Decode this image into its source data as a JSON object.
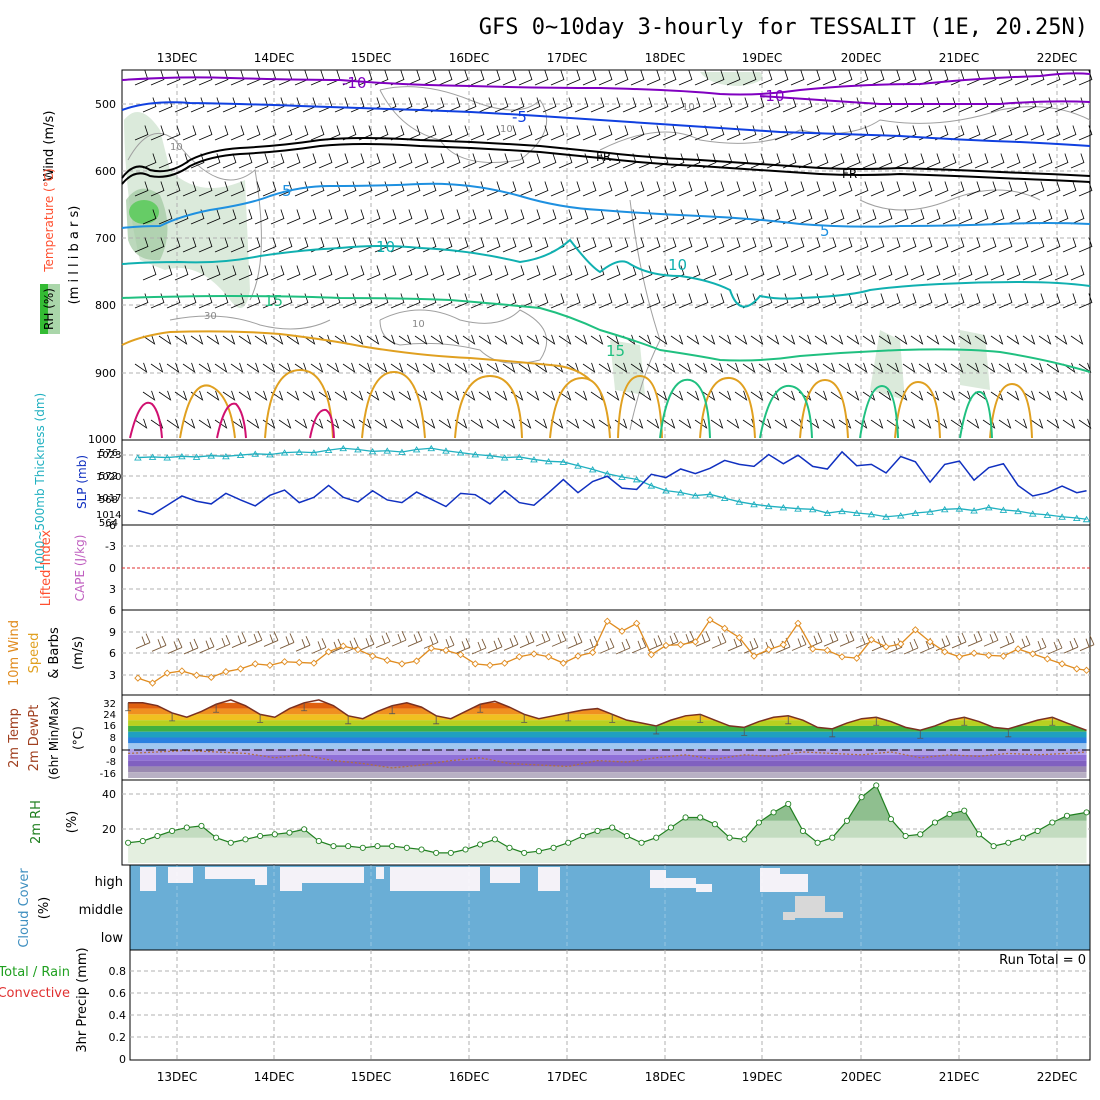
{
  "title": "GFS 0~10day 3-hourly for TESSALIT (1E, 20.25N)",
  "x_axis": {
    "top_labels": [
      "13DEC",
      "14DEC",
      "15DEC",
      "16DEC",
      "17DEC",
      "18DEC",
      "19DEC",
      "20DEC",
      "21DEC",
      "22DEC"
    ],
    "bottom_labels": [
      "13DEC",
      "14DEC",
      "15DEC",
      "16DEC",
      "17DEC",
      "18DEC",
      "19DEC",
      "20DEC",
      "21DEC",
      "22DEC"
    ]
  },
  "colors": {
    "purple": "#8000c0",
    "blue": "#1040e0",
    "lightblue": "#1e90e0",
    "teal": "#10b0b0",
    "green": "#20c080",
    "orange": "#e0a020",
    "magenta": "#d01070",
    "slp": "#1030c0",
    "thickness": "#20b0c0",
    "wind10": "#e08c20",
    "rh2m": "#208020",
    "cloud": "#6aaed6"
  },
  "panels": {
    "upper": {
      "ylabel_wind": "Wind (m/s)",
      "ylabel_temp": "Temperature (°C)",
      "ylabel_rh": "RH (%)",
      "ylabel_mb": "(m i l l i b a r s)",
      "yticks": [
        "500",
        "600",
        "700",
        "800",
        "900",
        "1000"
      ],
      "contour_labels": {
        "m10a": "-10",
        "m10b": "-10",
        "m5": "-5",
        "fr1": "FR",
        "fr2": "FR",
        "p5a": "5",
        "p5b": "5",
        "p10a": "10",
        "p10b": "10",
        "p15a": "15",
        "p15b": "15",
        "rh10a": "10",
        "rh10b": "10",
        "rh10c": "10",
        "rh10d": "10",
        "rh30": "30"
      }
    },
    "slp": {
      "ylabel_thick": "1000~500mb Thickness (dm)",
      "ylabel_slp": "SLP (mb)",
      "left_ticks": [
        "576",
        "572",
        "568",
        "564"
      ],
      "right_ticks": [
        "1023",
        "1020",
        "1017",
        "1014"
      ]
    },
    "cape": {
      "ylabel_li": "Lifted Index",
      "ylabel_cape": "CAPE (J/kg)",
      "yticks": [
        "-6",
        "-3",
        "0",
        "3",
        "6"
      ]
    },
    "wind10": {
      "ylabel_a": "10m Wind",
      "ylabel_b": "Speed",
      "ylabel_c": "& Barbs",
      "ylabel_d": "(m/s)",
      "yticks": [
        "9",
        "6",
        "3"
      ]
    },
    "temp": {
      "ylabel_a": "2m Temp",
      "ylabel_b": "2m DewPt",
      "ylabel_c": "(6hr Min/Max)",
      "ylabel_d": "(°C)",
      "yticks": [
        "32",
        "24",
        "16",
        "8",
        "0",
        "-8",
        "-16"
      ]
    },
    "rh": {
      "ylabel_a": "2m RH",
      "ylabel_b": "(%)",
      "yticks": [
        "40",
        "20"
      ]
    },
    "cloud": {
      "ylabel_a": "Cloud Cover",
      "ylabel_b": "(%)",
      "levels": [
        "high",
        "middle",
        "low"
      ]
    },
    "precip": {
      "ylabel_a": "3hr Precip (mm)",
      "ylabel_total": "Total / Rain",
      "ylabel_conv": "Convective",
      "run_total": "Run Total = 0",
      "yticks": [
        "0.8",
        "0.6",
        "0.4",
        "0.2",
        "0"
      ]
    }
  },
  "chart_data": [
    {
      "type": "line",
      "name": "1000~500mb thickness and SLP",
      "x_days": [
        12.6,
        12.75,
        12.9,
        13.05,
        13.2,
        13.35,
        13.5,
        13.65,
        13.8,
        13.95,
        14.1,
        14.25,
        14.4,
        14.55,
        14.7,
        14.85,
        15.0,
        15.15,
        15.3,
        15.45,
        15.6,
        15.75,
        15.9,
        16.05,
        16.2,
        16.35,
        16.5,
        16.65,
        16.8,
        16.95,
        17.1,
        17.25,
        17.4,
        17.55,
        17.7,
        17.85,
        18.0,
        18.15,
        18.3,
        18.45,
        18.6,
        18.75,
        18.9,
        19.05,
        19.2,
        19.35,
        19.5,
        19.65,
        19.8,
        19.95,
        20.1,
        20.25,
        20.4,
        20.55,
        20.7,
        20.85,
        21.0,
        21.15,
        21.3,
        21.45,
        21.6,
        21.75,
        21.9,
        22.05,
        22.2,
        22.3
      ],
      "series": [
        {
          "name": "Thickness",
          "values": [
            574.5,
            574.6,
            574.5,
            574.7,
            574.6,
            574.8,
            574.7,
            574.9,
            575.1,
            575.0,
            575.3,
            575.4,
            575.3,
            575.7,
            576.0,
            575.8,
            575.5,
            575.6,
            575.4,
            575.8,
            576.0,
            575.6,
            575.3,
            575.0,
            574.8,
            574.5,
            574.6,
            574.2,
            573.9,
            573.8,
            573.2,
            572.6,
            571.9,
            571.4,
            571.0,
            570.0,
            569.2,
            568.9,
            568.4,
            568.6,
            568.0,
            567.4,
            567.0,
            566.7,
            566.5,
            566.3,
            566.2,
            565.6,
            565.9,
            565.6,
            565.4,
            565.0,
            565.2,
            565.6,
            565.8,
            566.2,
            566.3,
            566.0,
            566.5,
            566.1,
            565.9,
            565.5,
            565.3,
            565.0,
            564.8,
            564.6
          ]
        },
        {
          "name": "SLP",
          "values": [
            1014.2,
            1013.6,
            1015.0,
            1016.4,
            1015.6,
            1015.2,
            1016.8,
            1015.8,
            1014.9,
            1016.5,
            1017.3,
            1015.4,
            1016.2,
            1018.0,
            1016.2,
            1015.5,
            1017.2,
            1015.8,
            1015.4,
            1017.0,
            1015.9,
            1014.8,
            1016.8,
            1016.6,
            1015.2,
            1017.2,
            1015.4,
            1015.0,
            1016.9,
            1018.9,
            1016.9,
            1018.6,
            1019.4,
            1017.6,
            1017.4,
            1019.7,
            1019.2,
            1020.5,
            1019.8,
            1020.6,
            1021.8,
            1021.2,
            1020.9,
            1022.7,
            1021.3,
            1022.6,
            1020.9,
            1020.5,
            1023.1,
            1021.0,
            1021.2,
            1019.9,
            1022.4,
            1021.6,
            1018.5,
            1021.2,
            1021.7,
            1018.8,
            1020.7,
            1021.3,
            1018.0,
            1016.4,
            1016.9,
            1017.9,
            1016.9,
            1017.2
          ]
        }
      ],
      "ylim_thickness": [
        564,
        577
      ],
      "ylim_slp": [
        1012.3,
        1024.6
      ],
      "xlabel": "",
      "ylabel": "Thickness (dm) / SLP (mb)"
    },
    {
      "type": "line",
      "name": "10m Wind Speed",
      "x_days": [
        12.6,
        12.75,
        12.9,
        13.05,
        13.2,
        13.35,
        13.5,
        13.65,
        13.8,
        13.95,
        14.1,
        14.25,
        14.4,
        14.55,
        14.7,
        14.85,
        15.0,
        15.15,
        15.3,
        15.45,
        15.6,
        15.75,
        15.9,
        16.05,
        16.2,
        16.35,
        16.5,
        16.65,
        16.8,
        16.95,
        17.1,
        17.25,
        17.4,
        17.55,
        17.7,
        17.85,
        18.0,
        18.15,
        18.3,
        18.45,
        18.6,
        18.75,
        18.9,
        19.05,
        19.2,
        19.35,
        19.5,
        19.65,
        19.8,
        19.95,
        20.1,
        20.25,
        20.4,
        20.55,
        20.7,
        20.85,
        21.0,
        21.15,
        21.3,
        21.45,
        21.6,
        21.75,
        21.9,
        22.05,
        22.2,
        22.3
      ],
      "values": [
        2.1,
        1.4,
        2.8,
        3.1,
        2.5,
        2.2,
        3.0,
        3.4,
        4.1,
        3.9,
        4.4,
        4.3,
        4.2,
        5.8,
        6.6,
        6.1,
        5.2,
        4.6,
        4.1,
        4.5,
        6.3,
        6.0,
        5.4,
        4.1,
        3.9,
        4.2,
        5.1,
        5.5,
        5.1,
        4.2,
        5.2,
        5.7,
        10.1,
        8.7,
        9.8,
        5.4,
        6.7,
        6.8,
        7.2,
        10.3,
        9.1,
        7.8,
        5.2,
        6.1,
        6.8,
        9.8,
        6.2,
        6.0,
        5.1,
        4.9,
        7.5,
        6.5,
        6.9,
        8.9,
        7.2,
        5.8,
        5.1,
        5.6,
        5.3,
        5.2,
        6.2,
        5.5,
        4.8,
        4.1,
        3.4,
        3.2
      ],
      "ylim": [
        0,
        11.4
      ],
      "ylabel": "10m Wind Speed (m/s)"
    },
    {
      "type": "area",
      "name": "2m Temp",
      "x_days": [
        12.5,
        12.65,
        12.8,
        12.95,
        13.1,
        13.25,
        13.4,
        13.55,
        13.7,
        13.85,
        14.0,
        14.15,
        14.3,
        14.45,
        14.6,
        14.75,
        14.9,
        15.05,
        15.2,
        15.35,
        15.5,
        15.65,
        15.8,
        15.95,
        16.1,
        16.25,
        16.4,
        16.55,
        16.7,
        16.85,
        17.0,
        17.15,
        17.3,
        17.45,
        17.6,
        17.75,
        17.9,
        18.05,
        18.2,
        18.35,
        18.5,
        18.65,
        18.8,
        18.95,
        19.1,
        19.25,
        19.4,
        19.55,
        19.7,
        19.85,
        20.0,
        20.15,
        20.3,
        20.45,
        20.6,
        20.75,
        20.9,
        21.05,
        21.2,
        21.35,
        21.5,
        21.65,
        21.8,
        21.95,
        22.1,
        22.3
      ],
      "values": [
        32,
        32,
        30,
        25,
        22,
        26,
        31,
        34,
        30,
        24,
        22,
        28,
        32,
        34,
        30,
        23,
        21,
        26,
        30,
        32,
        29,
        23,
        21,
        26,
        31,
        33,
        29,
        24,
        21,
        23,
        25,
        27,
        28,
        24,
        20,
        18,
        16,
        20,
        23,
        24,
        20,
        16,
        15,
        19,
        22,
        23,
        20,
        15,
        14,
        18,
        21,
        22,
        19,
        15,
        13,
        16,
        20,
        22,
        19,
        15,
        14,
        17,
        20,
        22,
        18,
        13
      ],
      "ylim": [
        -20,
        36
      ],
      "ylabel": "2m Temp (°C)"
    },
    {
      "type": "line",
      "name": "2m DewPt",
      "x_days": [
        12.5,
        12.8,
        13.1,
        13.4,
        13.7,
        14.0,
        14.3,
        14.6,
        14.9,
        15.2,
        15.5,
        15.8,
        16.1,
        16.4,
        16.7,
        17.0,
        17.3,
        17.6,
        17.9,
        18.2,
        18.5,
        18.8,
        19.1,
        19.4,
        19.7,
        20.0,
        20.3,
        20.6,
        20.9,
        21.2,
        21.5,
        21.8,
        22.1,
        22.3
      ],
      "values": [
        -3,
        -2,
        -1,
        -2,
        -3,
        -6,
        -4,
        -8,
        -10,
        -13,
        -11,
        -8,
        -6,
        -10,
        -11,
        -12,
        -8,
        -9,
        -6,
        -4,
        -7,
        -4,
        -5,
        -2,
        -3,
        -4,
        -2,
        -6,
        -4,
        -5,
        -3,
        -4,
        -3,
        -2
      ],
      "ylim": [
        -20,
        36
      ],
      "ylabel": "2m DewPt (°C)"
    },
    {
      "type": "area",
      "name": "2m RH",
      "x_days": [
        12.5,
        12.65,
        12.8,
        12.95,
        13.1,
        13.25,
        13.4,
        13.55,
        13.7,
        13.85,
        14.0,
        14.15,
        14.3,
        14.45,
        14.6,
        14.75,
        14.9,
        15.05,
        15.2,
        15.35,
        15.5,
        15.65,
        15.8,
        15.95,
        16.1,
        16.25,
        16.4,
        16.55,
        16.7,
        16.85,
        17.0,
        17.15,
        17.3,
        17.45,
        17.6,
        17.75,
        17.9,
        18.05,
        18.2,
        18.35,
        18.5,
        18.65,
        18.8,
        18.95,
        19.1,
        19.25,
        19.4,
        19.55,
        19.7,
        19.85,
        20.0,
        20.15,
        20.3,
        20.45,
        20.6,
        20.75,
        20.9,
        21.05,
        21.2,
        21.35,
        21.5,
        21.65,
        21.8,
        21.95,
        22.1,
        22.3
      ],
      "values": [
        12,
        13,
        16,
        19,
        21,
        22,
        15,
        12,
        14,
        16,
        17,
        18,
        20,
        13,
        10,
        10,
        9,
        10,
        10,
        9,
        8,
        6,
        6,
        8,
        11,
        14,
        9,
        6,
        7,
        9,
        12,
        16,
        19,
        21,
        16,
        12,
        15,
        21,
        27,
        27,
        23,
        15,
        14,
        24,
        30,
        35,
        19,
        12,
        15,
        25,
        39,
        46,
        26,
        16,
        17,
        24,
        29,
        31,
        17,
        10,
        12,
        15,
        19,
        24,
        28,
        30
      ],
      "ylim": [
        0,
        48
      ],
      "ylabel": "2m RH (%)"
    },
    {
      "type": "bar",
      "name": "3hr Precip",
      "categories": [
        "13DEC",
        "14DEC",
        "15DEC",
        "16DEC",
        "17DEC",
        "18DEC",
        "19DEC",
        "20DEC",
        "21DEC",
        "22DEC"
      ],
      "values": [
        0,
        0,
        0,
        0,
        0,
        0,
        0,
        0,
        0,
        0
      ],
      "ylim": [
        0,
        1
      ],
      "ylabel": "3hr Precip (mm)"
    }
  ]
}
